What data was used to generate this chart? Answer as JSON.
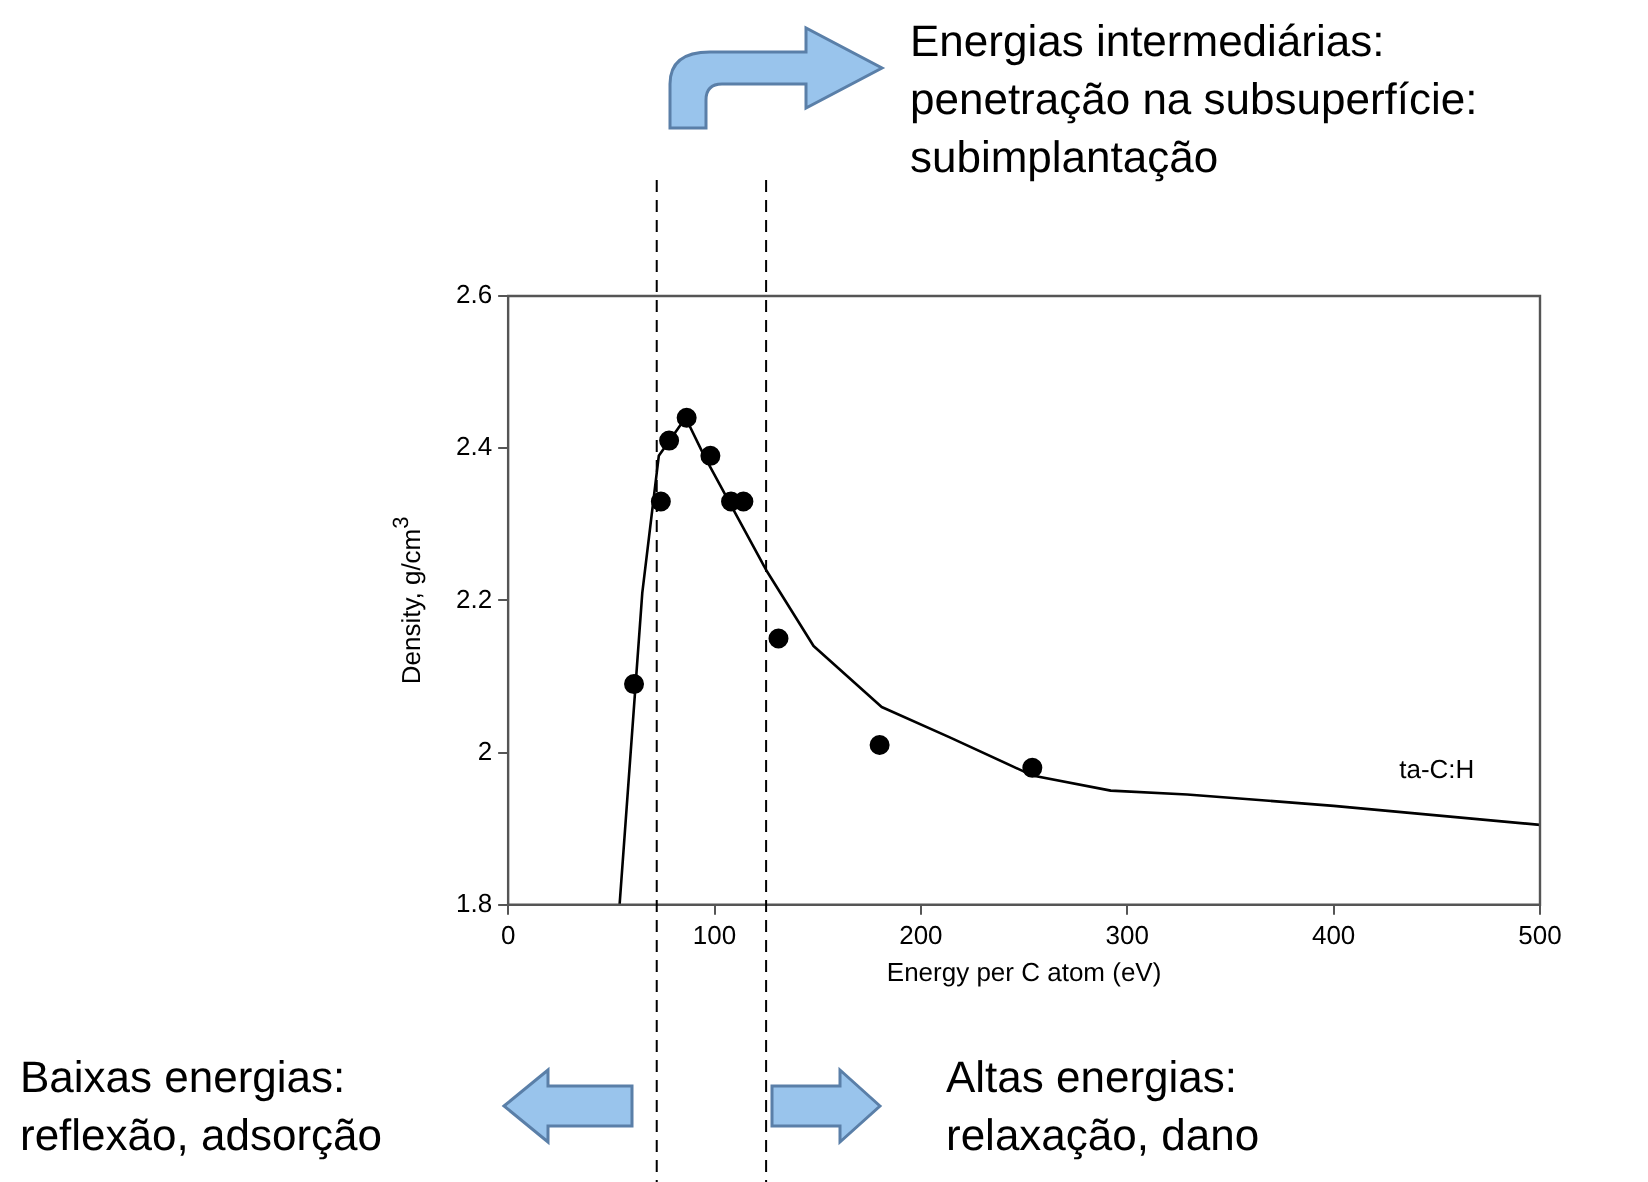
{
  "chart_data": {
    "type": "scatter",
    "xlabel": "Energy per C atom (eV)",
    "ylabel": "Density, g/cm$^{3}$",
    "xlim": [
      0,
      500
    ],
    "xticks": [
      0,
      100,
      200,
      300,
      400,
      500
    ],
    "ylim": [
      1.8,
      2.6
    ],
    "yticks": [
      1.8,
      2,
      2.2,
      2.4,
      2.6
    ],
    "grid": false,
    "legend": false,
    "marker": "circle",
    "series": [
      {
        "color": "#000000",
        "x": [
          61,
          74,
          78,
          86.5,
          98,
          108,
          114,
          131,
          180,
          254
        ],
        "values": [
          2.09,
          2.33,
          2.41,
          2.44,
          2.39,
          2.33,
          2.33,
          2.15,
          2.01,
          1.98
        ]
      },
      {
        "type": "line",
        "name": "ta-C:H",
        "color": "#000000",
        "marker": "none",
        "x": [
          54,
          65,
          73,
          86,
          95,
          109,
          125,
          148,
          181,
          214,
          254,
          292,
          329,
          400,
          500
        ],
        "values": [
          1.8,
          2.21,
          2.39,
          2.44,
          2.39,
          2.32,
          2.24,
          2.14,
          2.06,
          2.02,
          1.97,
          1.95,
          1.945,
          1.93,
          1.905
        ]
      }
    ],
    "ref_lines": [
      {
        "axis": "x",
        "value": 72,
        "line_style": "dashed",
        "color": "#000000"
      },
      {
        "axis": "x",
        "value": 125,
        "line_style": "dashed",
        "color": "#000000"
      }
    ],
    "annotations": [
      "Energias intermediárias:\npenetração na subsuperfície:\nsubimplantação",
      "Baixas energias:\nreflexão, adsorção",
      "Altas energias:\nrelaxação, dano"
    ]
  }
}
